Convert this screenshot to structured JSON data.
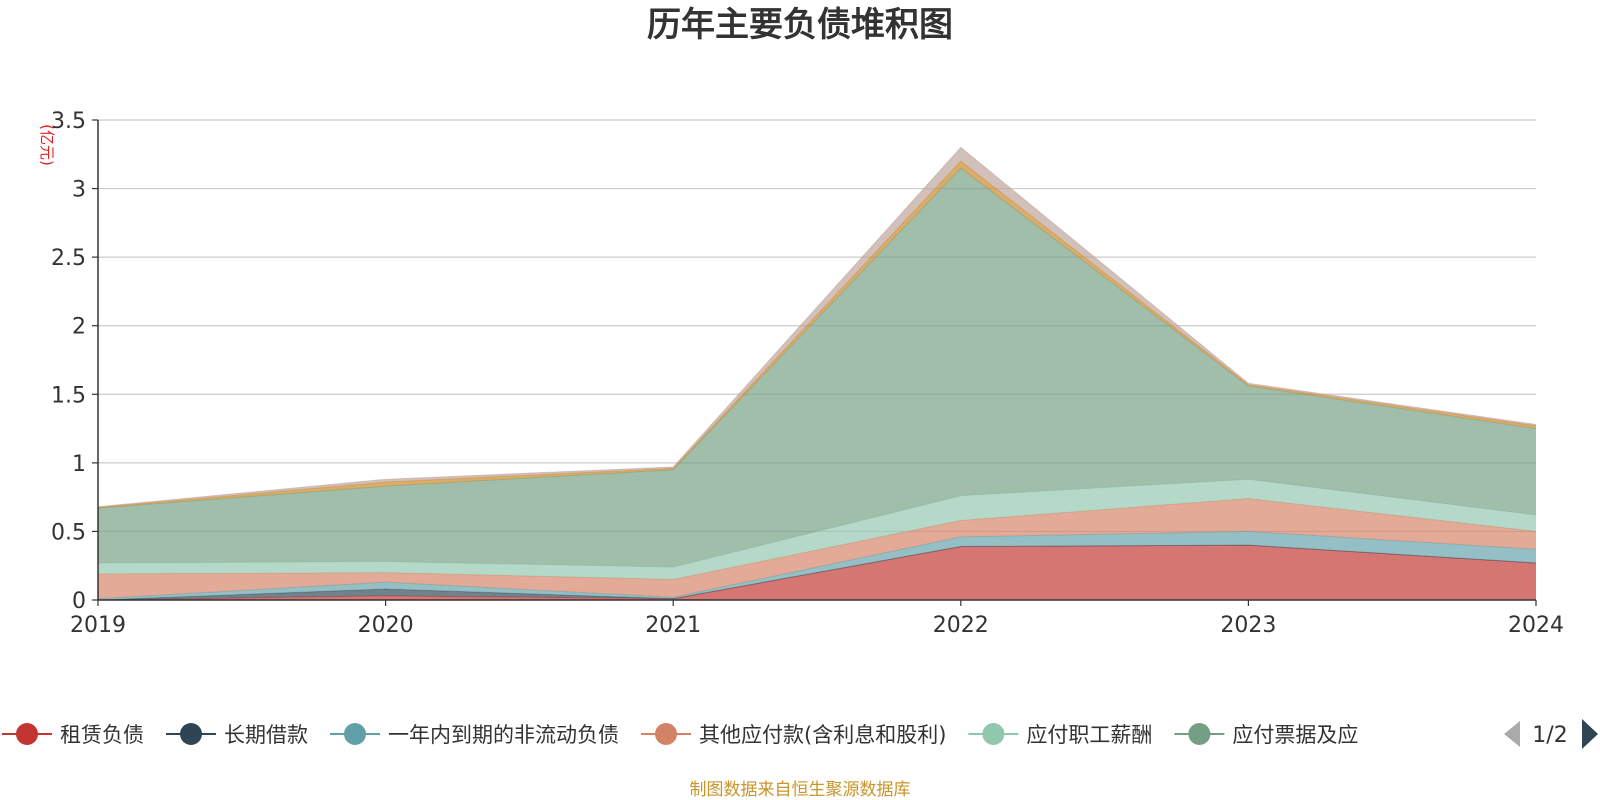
{
  "chart_data": {
    "type": "area",
    "stacked": true,
    "title": "历年主要负债堆积图",
    "ylabel": "(亿元)",
    "xlabel": "",
    "categories": [
      "2019",
      "2020",
      "2021",
      "2022",
      "2023",
      "2024"
    ],
    "ylim": [
      0,
      3.5
    ],
    "yticks": [
      "0",
      "0.5",
      "1",
      "1.5",
      "2",
      "2.5",
      "3",
      "3.5"
    ],
    "grid": true,
    "legend_position": "bottom",
    "series": [
      {
        "name": "租赁负债",
        "color": "#c23531",
        "values": [
          0.0,
          0.03,
          0.01,
          0.39,
          0.4,
          0.27
        ]
      },
      {
        "name": "长期借款",
        "color": "#2f4554",
        "values": [
          0.0,
          0.05,
          0.0,
          0.0,
          0.0,
          0.0
        ]
      },
      {
        "name": "一年内到期的非流动负债",
        "color": "#61a0a8",
        "values": [
          0.01,
          0.05,
          0.01,
          0.07,
          0.1,
          0.1
        ]
      },
      {
        "name": "其他应付款(含利息和股利)",
        "color": "#d48265",
        "values": [
          0.18,
          0.07,
          0.13,
          0.12,
          0.24,
          0.13
        ]
      },
      {
        "name": "应付职工薪酬",
        "color": "#91c7ae",
        "values": [
          0.08,
          0.08,
          0.09,
          0.18,
          0.14,
          0.12
        ]
      },
      {
        "name": "应付票据及应付账款",
        "color": "#749f83",
        "values": [
          0.4,
          0.55,
          0.71,
          2.39,
          0.68,
          0.63
        ]
      },
      {
        "name": "",
        "color": "#ca8622",
        "values": [
          0.005,
          0.03,
          0.01,
          0.05,
          0.01,
          0.02
        ]
      },
      {
        "name": "",
        "color": "#bda29a",
        "values": [
          0.005,
          0.02,
          0.01,
          0.1,
          0.01,
          0.01
        ]
      }
    ]
  },
  "legend": {
    "items": [
      {
        "label": "租赁负债",
        "color": "#c23531"
      },
      {
        "label": "长期借款",
        "color": "#2f4554"
      },
      {
        "label": "一年内到期的非流动负债",
        "color": "#61a0a8"
      },
      {
        "label": "其他应付款(含利息和股利)",
        "color": "#d48265"
      },
      {
        "label": "应付职工薪酬",
        "color": "#91c7ae"
      },
      {
        "label": "应付票据及应",
        "color": "#749f83"
      }
    ],
    "page": "1/2"
  },
  "source": "制图数据来自恒生聚源数据库"
}
